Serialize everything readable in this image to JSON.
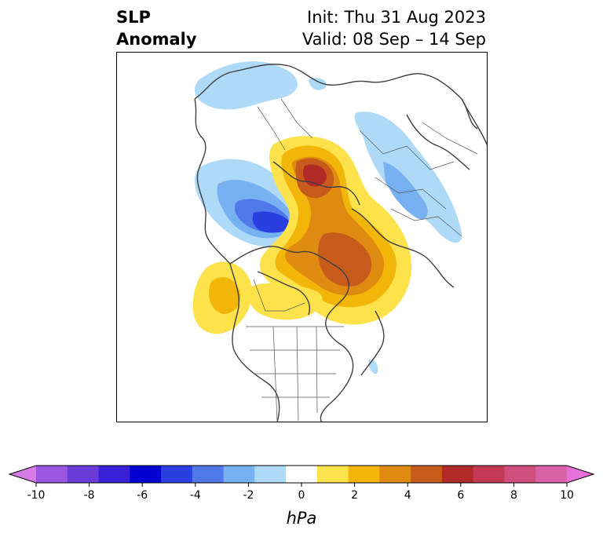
{
  "title": {
    "left_line1": "SLP",
    "left_line2": "Anomaly",
    "init": "Init: Thu 31 Aug 2023",
    "valid": "Valid: 08 Sep – 14 Sep"
  },
  "colorbar": {
    "units": "hPa",
    "ticks": [
      "-10",
      "-8",
      "-6",
      "-4",
      "-2",
      "0",
      "2",
      "4",
      "6",
      "8",
      "10"
    ],
    "colors": [
      "#d77be6",
      "#9b57e0",
      "#6a3bd7",
      "#3a1fd6",
      "#0000d0",
      "#2a3fe0",
      "#4f79e9",
      "#78b1f2",
      "#aedaf8",
      "#ffffff",
      "#fde24c",
      "#f2b60a",
      "#df8a10",
      "#c75b1b",
      "#b22a28",
      "#c43b57",
      "#cf4f7d",
      "#d762a6",
      "#e672d9"
    ]
  }
}
